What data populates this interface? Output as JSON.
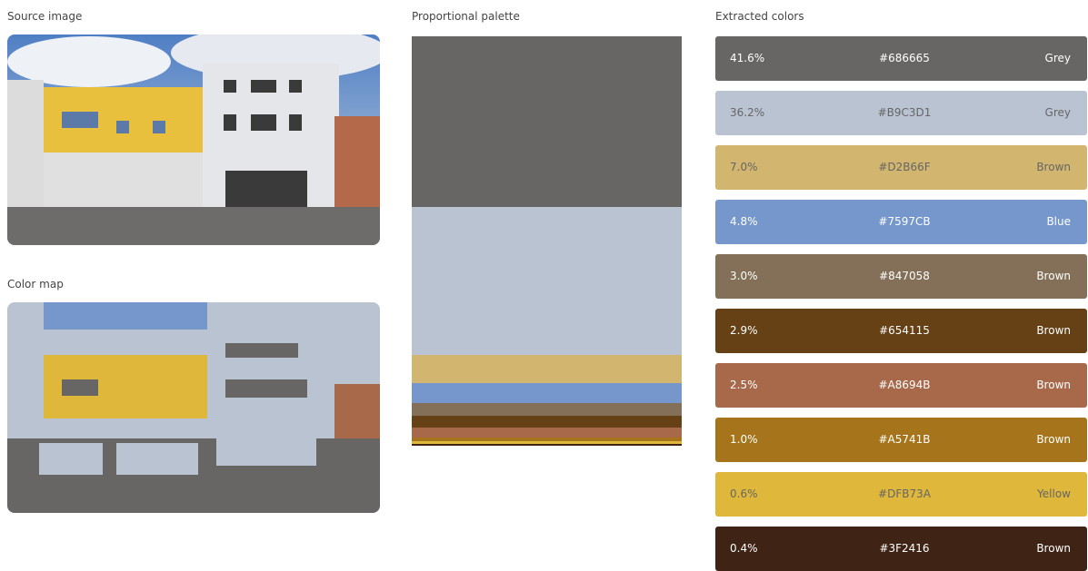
{
  "source_image": {
    "title": "Source image"
  },
  "color_map": {
    "title": "Color map"
  },
  "palette": {
    "title": "Proportional palette"
  },
  "extracted": {
    "title": "Extracted colors",
    "colors": [
      {
        "percent": 41.6,
        "percent_label": "41.6%",
        "hex": "#686665",
        "name": "Grey"
      },
      {
        "percent": 36.2,
        "percent_label": "36.2%",
        "hex": "#B9C3D1",
        "name": "Grey"
      },
      {
        "percent": 7.0,
        "percent_label": "7.0%",
        "hex": "#D2B66F",
        "name": "Brown"
      },
      {
        "percent": 4.8,
        "percent_label": "4.8%",
        "hex": "#7597CB",
        "name": "Blue"
      },
      {
        "percent": 3.0,
        "percent_label": "3.0%",
        "hex": "#847058",
        "name": "Brown"
      },
      {
        "percent": 2.9,
        "percent_label": "2.9%",
        "hex": "#654115",
        "name": "Brown"
      },
      {
        "percent": 2.5,
        "percent_label": "2.5%",
        "hex": "#A8694B",
        "name": "Brown"
      },
      {
        "percent": 1.0,
        "percent_label": "1.0%",
        "hex": "#A5741B",
        "name": "Brown"
      },
      {
        "percent": 0.6,
        "percent_label": "0.6%",
        "hex": "#DFB73A",
        "name": "Yellow"
      },
      {
        "percent": 0.4,
        "percent_label": "0.4%",
        "hex": "#3F2416",
        "name": "Brown"
      }
    ]
  }
}
